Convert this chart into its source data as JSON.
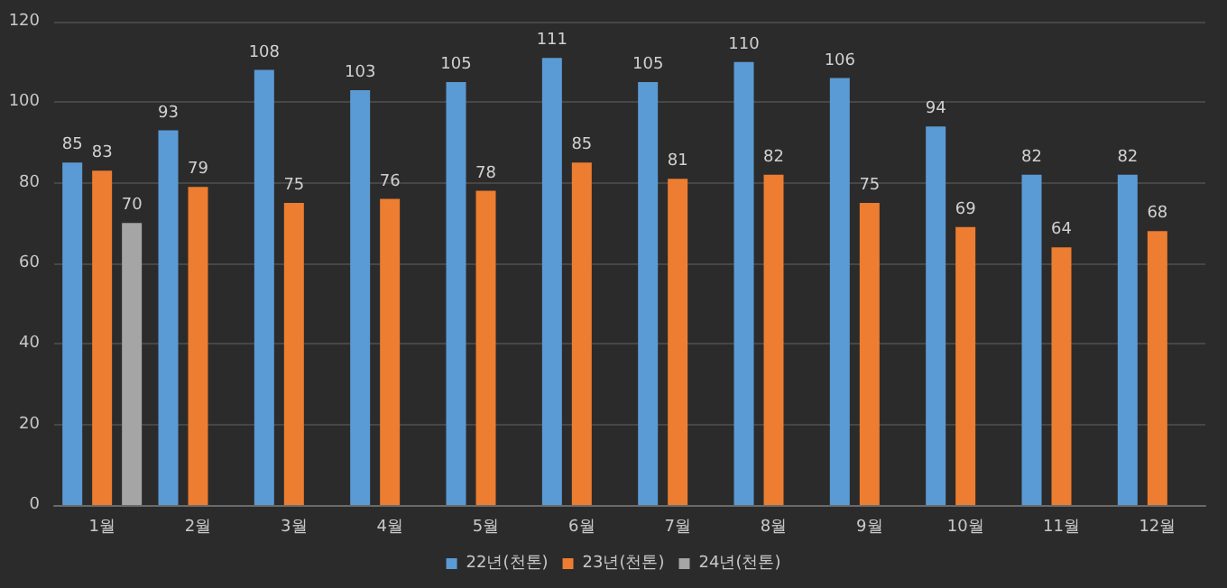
{
  "chart_data": {
    "type": "bar",
    "categories": [
      "1월",
      "2월",
      "3월",
      "4월",
      "5월",
      "6월",
      "7월",
      "8월",
      "9월",
      "10월",
      "11월",
      "12월"
    ],
    "series": [
      {
        "name": "22년(천톤)",
        "color": "#5b9bd5",
        "values": [
          85,
          93,
          108,
          103,
          105,
          111,
          105,
          110,
          106,
          94,
          82,
          82
        ]
      },
      {
        "name": "23년(천톤)",
        "color": "#ed7d31",
        "values": [
          83,
          79,
          75,
          76,
          78,
          85,
          81,
          82,
          75,
          69,
          64,
          68
        ]
      },
      {
        "name": "24년(천톤)",
        "color": "#a5a5a5",
        "values": [
          70,
          null,
          null,
          null,
          null,
          null,
          null,
          null,
          null,
          null,
          null,
          null
        ]
      }
    ],
    "ylim": [
      0,
      120
    ],
    "yticks": [
      0,
      20,
      40,
      60,
      80,
      100,
      120
    ],
    "grid": "y",
    "legend": "bottom",
    "data_labels": true
  }
}
